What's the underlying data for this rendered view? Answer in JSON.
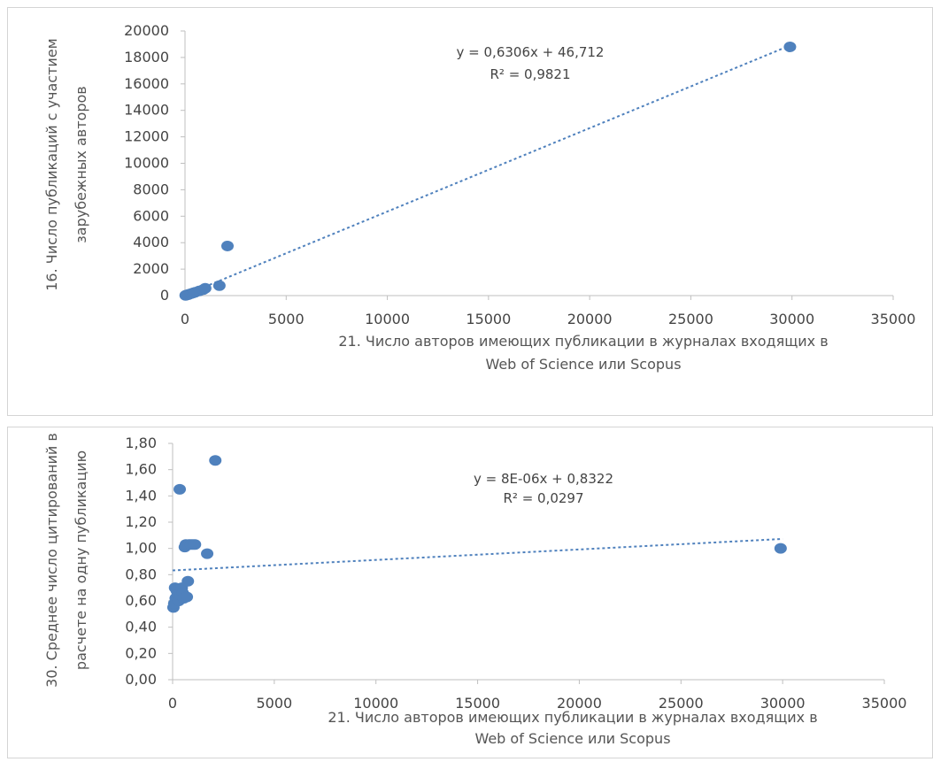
{
  "chart_data": [
    {
      "type": "scatter",
      "title": "",
      "xlabel_lines": [
        "21. Число авторов имеющих публикации в журналах  входящих в",
        "Web of Science или Scopus"
      ],
      "ylabel_lines": [
        "16. Число публикаций с участием",
        "зарубежных авторов"
      ],
      "xlim": [
        0,
        35000
      ],
      "ylim": [
        0,
        20000
      ],
      "x_ticks": [
        0,
        5000,
        10000,
        15000,
        20000,
        25000,
        30000,
        35000
      ],
      "x_tick_labels": [
        "0",
        "5000",
        "10000",
        "15000",
        "20000",
        "25000",
        "30000",
        "35000"
      ],
      "y_ticks": [
        0,
        2000,
        4000,
        6000,
        8000,
        10000,
        12000,
        14000,
        16000,
        18000,
        20000
      ],
      "y_tick_labels": [
        "0",
        "2000",
        "4000",
        "6000",
        "8000",
        "10000",
        "12000",
        "14000",
        "16000",
        "18000",
        "20000"
      ],
      "series": [
        {
          "x": [
            30,
            80,
            150,
            200,
            300,
            400,
            500,
            700,
            900,
            1000,
            1700,
            2100,
            29900
          ],
          "y": [
            20,
            50,
            70,
            100,
            150,
            200,
            250,
            350,
            450,
            550,
            750,
            3750,
            18800
          ]
        }
      ],
      "trendline": {
        "slope": 0.6306,
        "intercept": 46.712,
        "x_range": [
          0,
          30000
        ]
      },
      "equation": "y = 0,6306x + 46,712",
      "r2": "R² = 0,9821",
      "grid": false,
      "marker_color": "#4f81bd",
      "trend_color": "#4f81bd"
    },
    {
      "type": "scatter",
      "title": "",
      "xlabel_lines": [
        "21. Число авторов имеющих публикации в журналах  входящих в",
        "Web of Science или Scopus"
      ],
      "ylabel_lines": [
        "30. Среднее число цитирований в",
        "расчете на одну публикацию"
      ],
      "xlim": [
        0,
        35000
      ],
      "ylim": [
        0,
        1.8
      ],
      "x_ticks": [
        0,
        5000,
        10000,
        15000,
        20000,
        25000,
        30000,
        35000
      ],
      "x_tick_labels": [
        "0",
        "5000",
        "10000",
        "15000",
        "20000",
        "25000",
        "30000",
        "35000"
      ],
      "y_ticks": [
        0,
        0.2,
        0.4,
        0.6,
        0.8,
        1.0,
        1.2,
        1.4,
        1.6,
        1.8
      ],
      "y_tick_labels": [
        "0,00",
        "0,20",
        "0,40",
        "0,60",
        "0,80",
        "1,00",
        "1,20",
        "1,40",
        "1,60",
        "1,80"
      ],
      "series": [
        {
          "x": [
            40,
            80,
            120,
            150,
            200,
            250,
            300,
            350,
            400,
            450,
            500,
            550,
            600,
            650,
            700,
            750,
            800,
            900,
            1000,
            1100,
            1700,
            2100,
            29900
          ],
          "y": [
            0.55,
            0.58,
            0.7,
            0.62,
            0.68,
            0.65,
            0.6,
            1.45,
            0.64,
            0.7,
            0.66,
            0.62,
            1.01,
            1.03,
            0.63,
            0.75,
            1.03,
            1.03,
            1.03,
            1.03,
            0.96,
            1.67,
            1.0
          ]
        }
      ],
      "trendline": {
        "slope": 8e-06,
        "intercept": 0.8322,
        "x_range": [
          0,
          30000
        ]
      },
      "equation": "y = 8E-06x + 0,8322",
      "r2": "R² = 0,0297",
      "grid": false,
      "marker_color": "#4f81bd",
      "trend_color": "#4f81bd"
    }
  ]
}
